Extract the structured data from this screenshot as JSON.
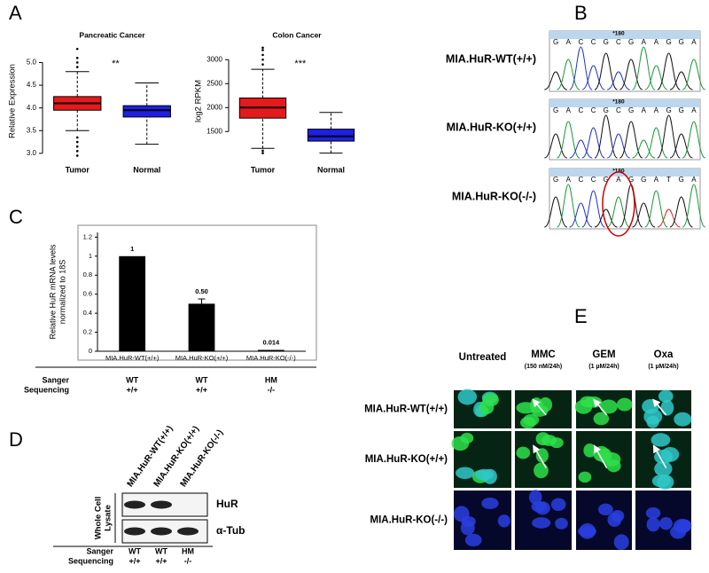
{
  "panel_labels": [
    "A",
    "B",
    "C",
    "D",
    "E"
  ],
  "chart_data": [
    {
      "type": "box",
      "title": "Pancreatic Cancer",
      "y_label": "Relative Expression",
      "annotation": "**",
      "categories": [
        "Tumor",
        "Normal"
      ],
      "boxes": [
        {
          "low": 3.5,
          "q1": 3.95,
          "median": 4.1,
          "q3": 4.25,
          "high": 4.8,
          "outliers": [
            2.95,
            3.05,
            3.15,
            3.25,
            3.35,
            4.9,
            5.0,
            5.1,
            5.3
          ],
          "color": "#e41a1c"
        },
        {
          "low": 3.2,
          "q1": 3.8,
          "median": 3.95,
          "q3": 4.05,
          "high": 4.55,
          "outliers": [],
          "color": "#1f1fe6"
        }
      ],
      "ylim": [
        2.9,
        5.4
      ],
      "yticks": [
        {
          "value": 3,
          "label": "3.0"
        },
        3.5,
        {
          "value": 4,
          "label": "4.0"
        },
        4.5,
        {
          "value": 5,
          "label": "5.0"
        }
      ]
    },
    {
      "type": "box",
      "title": "Colon Cancer",
      "y_label": "log2 RPKM",
      "annotation": "***",
      "categories": [
        "Tumor",
        "Normal"
      ],
      "boxes": [
        {
          "low": 1150,
          "q1": 1780,
          "median": 2000,
          "q3": 2200,
          "high": 2800,
          "outliers": [
            1050,
            1100,
            2900,
            3000,
            3100,
            3200,
            3250
          ],
          "color": "#e41a1c"
        },
        {
          "low": 1050,
          "q1": 1300,
          "median": 1400,
          "q3": 1550,
          "high": 1900,
          "outliers": [],
          "color": "#1f1fe6"
        }
      ],
      "ylim": [
        950,
        3320
      ],
      "yticks": [
        1500,
        2000,
        2500,
        3000
      ]
    },
    {
      "type": "bar",
      "y_label": [
        "Relative HuR mRNA levels",
        "normalized to 18S"
      ],
      "categories": [
        "MIA.HuR-WT(+/+)",
        "MIA.HuR-KO(+/+)",
        "MIA.HuR-KO(-/-)"
      ],
      "values": [
        1,
        0.5,
        0.014
      ],
      "value_labels": [
        "1",
        "0.50",
        "0.014"
      ],
      "errors": [
        null,
        0.05,
        null
      ],
      "color": "#000000",
      "ylim": [
        0,
        1.25
      ],
      "yticks": [
        0,
        0.2,
        0.4,
        0.6,
        0.8,
        1,
        1.2
      ]
    }
  ],
  "panel_c_sequencing": {
    "label": [
      "Sanger",
      "Sequencing"
    ],
    "calls": [
      [
        "WT",
        "+/+"
      ],
      [
        "WT",
        "+/+"
      ],
      [
        "HM",
        "-/-"
      ]
    ]
  },
  "panel_b": {
    "rows": [
      {
        "label": "MIA.HuR-WT(+/+)",
        "bases": [
          "G",
          "A",
          "C",
          "C",
          "G",
          "C",
          "G",
          "A",
          "A",
          "G",
          "G",
          "A"
        ],
        "marker": "*180"
      },
      {
        "label": "MIA.HuR-KO(+/+)",
        "bases": [
          "G",
          "A",
          "C",
          "C",
          "G",
          "C",
          "G",
          "A",
          "A",
          "G",
          "G",
          "A"
        ],
        "marker": "*180"
      },
      {
        "label": "MIA.HuR-KO(-/-)",
        "bases": [
          "G",
          "A",
          "C",
          "C",
          "G",
          "A",
          "G",
          "G",
          "A",
          "T",
          "G",
          "A"
        ],
        "marker": "*180"
      }
    ]
  },
  "panel_d": {
    "lanes": [
      "MIA.HuR-WT(+/+)",
      "MIA.HuR-KO(+/+)",
      "MIA.HuR-KO(-/-)"
    ],
    "sample": [
      "Whole Cell",
      "Lysate"
    ],
    "bands": [
      "HuR",
      "α-Tub"
    ],
    "sequencing_label": [
      "Sanger",
      "Sequencing"
    ],
    "calls": [
      [
        "WT",
        "+/+"
      ],
      [
        "WT",
        "+/+"
      ],
      [
        "HM",
        "-/-"
      ]
    ]
  },
  "panel_e": {
    "columns": [
      {
        "name": "Untreated"
      },
      {
        "name": "MMC",
        "dose": "(150 nM/24h)"
      },
      {
        "name": "GEM",
        "dose": "(1 µM/24h)"
      },
      {
        "name": "Oxa",
        "dose": "(1 µM/24h)"
      }
    ],
    "rows": [
      "MIA.HuR-WT(+/+)",
      "MIA.HuR-KO(+/+)",
      "MIA.HuR-KO(-/-)"
    ]
  }
}
